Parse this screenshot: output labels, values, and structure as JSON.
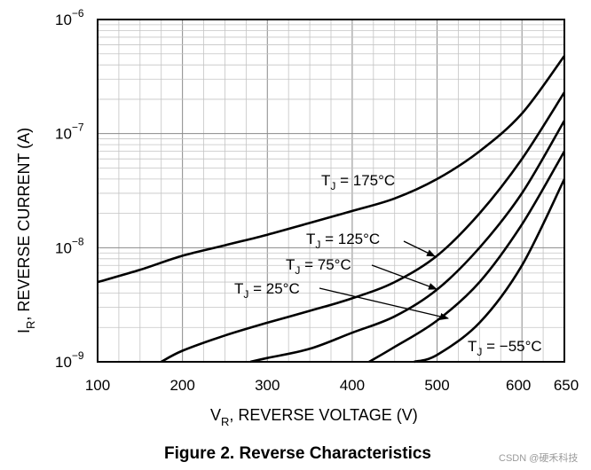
{
  "chart_data": {
    "type": "line",
    "title": "Figure 2. Reverse Characteristics",
    "xlabel": {
      "main": "V",
      "sub": "R",
      "rest": ", REVERSE VOLTAGE (V)"
    },
    "ylabel": {
      "main": "I",
      "sub": "R",
      "rest": ", REVERSE CURRENT (A)"
    },
    "x_scale": "linear",
    "y_scale": "log",
    "xlim": [
      100,
      650
    ],
    "ylim": [
      1e-09,
      1e-06
    ],
    "grid": true,
    "x_ticks": [
      "100",
      "200",
      "300",
      "400",
      "500",
      "600",
      "650"
    ],
    "x_tick_values": [
      100,
      200,
      300,
      400,
      500,
      600,
      650
    ],
    "y_ticks": [
      {
        "base": "10",
        "exp": "−9",
        "value": 1e-09
      },
      {
        "base": "10",
        "exp": "−8",
        "value": 1e-08
      },
      {
        "base": "10",
        "exp": "−7",
        "value": 1e-07
      },
      {
        "base": "10",
        "exp": "−6",
        "value": 1e-06
      }
    ],
    "series": [
      {
        "name": "T_J = 175°C",
        "x": [
          100,
          150,
          200,
          250,
          300,
          350,
          400,
          450,
          500,
          550,
          600,
          650
        ],
        "y": [
          5e-09,
          6.4e-09,
          8.5e-09,
          1.05e-08,
          1.3e-08,
          1.65e-08,
          2.1e-08,
          2.7e-08,
          4e-08,
          7e-08,
          1.5e-07,
          4.8e-07
        ]
      },
      {
        "name": "T_J = 125°C",
        "x": [
          175,
          200,
          250,
          300,
          350,
          400,
          450,
          500,
          550,
          600,
          650
        ],
        "y": [
          1e-09,
          1.25e-09,
          1.7e-09,
          2.2e-09,
          2.8e-09,
          3.6e-09,
          5e-09,
          8.5e-09,
          2e-08,
          6e-08,
          2.3e-07
        ]
      },
      {
        "name": "T_J = 75°C",
        "x": [
          280,
          300,
          350,
          400,
          450,
          500,
          550,
          600,
          650
        ],
        "y": [
          1e-09,
          1.08e-09,
          1.3e-09,
          1.8e-09,
          2.5e-09,
          4.3e-09,
          1e-08,
          3e-08,
          1.3e-07
        ]
      },
      {
        "name": "T_J = 25°C",
        "x": [
          420,
          450,
          500,
          550,
          600,
          650
        ],
        "y": [
          1e-09,
          1.35e-09,
          2.3e-09,
          5e-09,
          1.6e-08,
          7e-08
        ]
      },
      {
        "name": "T_J = −55°C",
        "x": [
          473,
          500,
          550,
          600,
          650
        ],
        "y": [
          1e-09,
          1.15e-09,
          2.2e-09,
          7e-09,
          4e-08
        ]
      }
    ],
    "annotations": [
      {
        "prefix": "T",
        "sub": "J",
        "text": " = 175°C"
      },
      {
        "prefix": "T",
        "sub": "J",
        "text": " = 125°C"
      },
      {
        "prefix": "T",
        "sub": "J",
        "text": " = 75°C"
      },
      {
        "prefix": "T",
        "sub": "J",
        "text": " = 25°C"
      },
      {
        "prefix": "T",
        "sub": "J",
        "text": " = −55°C"
      }
    ]
  },
  "watermark": "CSDN @硬禾科技"
}
